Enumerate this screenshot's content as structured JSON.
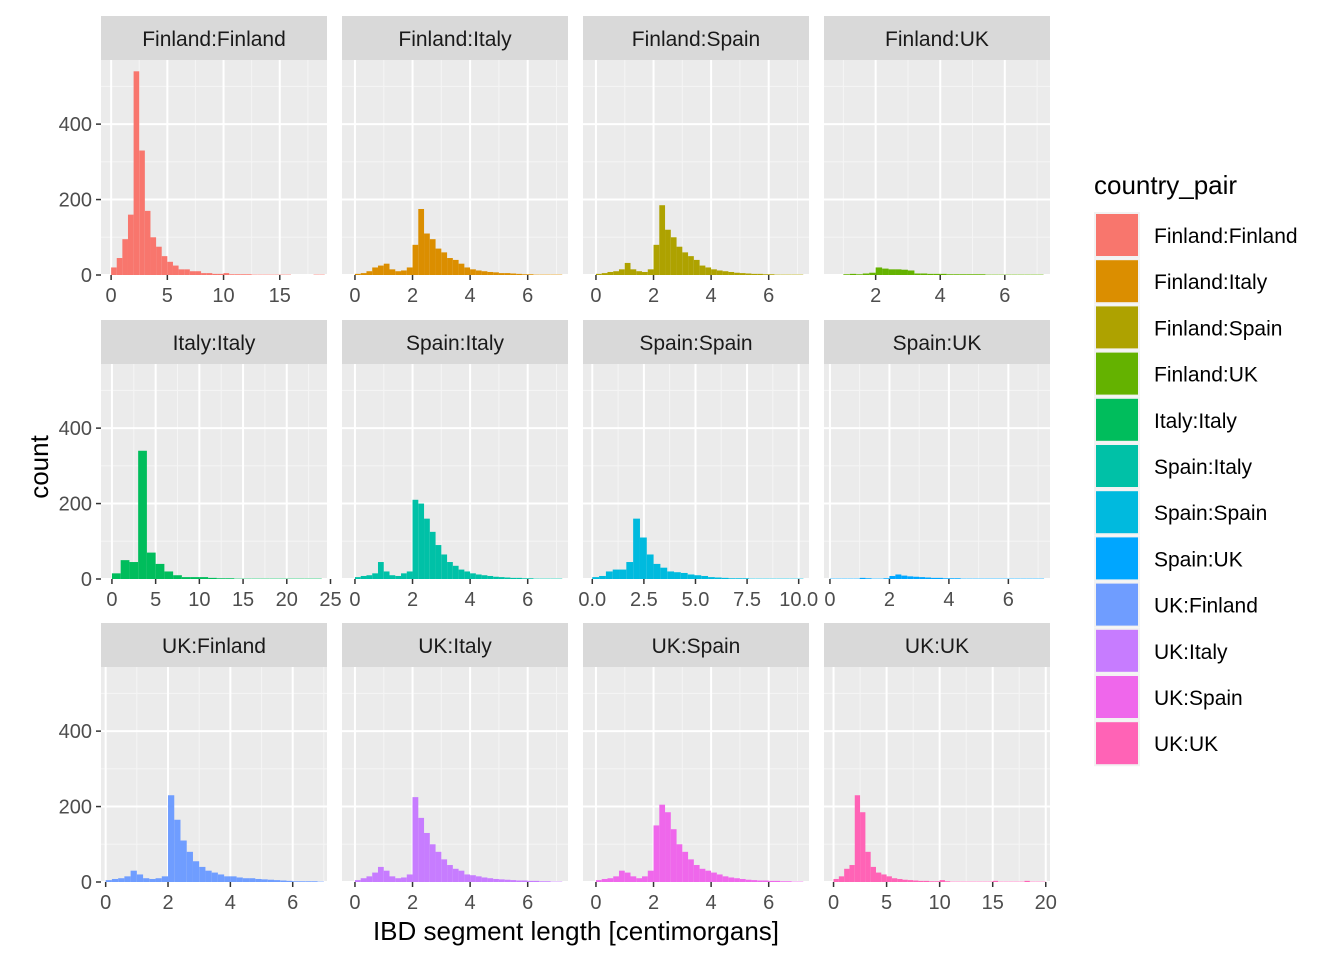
{
  "chart_data": {
    "type": "bar",
    "subtype": "faceted-histogram",
    "xlabel": "IBD segment length [centimorgans]",
    "ylabel": "count",
    "y_ticks": [
      "0",
      "200",
      "400"
    ],
    "ylim": [
      0,
      570
    ],
    "legend": {
      "title": "country_pair",
      "position": "right"
    },
    "panels": [
      {
        "name": "Finland:Finland",
        "color": "#F8766D",
        "xlim": [
          -0.9,
          19.2
        ],
        "x_ticks": [
          0,
          5,
          10,
          15
        ],
        "bin_width": 0.5,
        "bin_starts": [
          0,
          0.5,
          1,
          1.5,
          2,
          2.5,
          3,
          3.5,
          4,
          4.5,
          5,
          5.5,
          6,
          6.5,
          7,
          7.5,
          8,
          8.5,
          9,
          9.5,
          10,
          10.5,
          11,
          11.5,
          12,
          12.5,
          13,
          13.5,
          14,
          14.5,
          15,
          15.5,
          16,
          16.5,
          17,
          17.5,
          18,
          18.5
        ],
        "counts": [
          20,
          45,
          95,
          160,
          540,
          330,
          170,
          100,
          75,
          50,
          35,
          25,
          15,
          15,
          10,
          10,
          5,
          5,
          3,
          3,
          5,
          2,
          2,
          2,
          2,
          1,
          1,
          1,
          1,
          1,
          1,
          1,
          0,
          0,
          0,
          0,
          1,
          1
        ]
      },
      {
        "name": "Finland:Italy",
        "color": "#DB8E00",
        "xlim": [
          -0.45,
          7.4
        ],
        "x_ticks": [
          0,
          2,
          4,
          6
        ],
        "bin_width": 0.2,
        "bin_starts": [
          0,
          0.2,
          0.4,
          0.6,
          0.8,
          1,
          1.2,
          1.4,
          1.6,
          1.8,
          2,
          2.2,
          2.4,
          2.6,
          2.8,
          3,
          3.2,
          3.4,
          3.6,
          3.8,
          4,
          4.2,
          4.4,
          4.6,
          4.8,
          5,
          5.2,
          5.4,
          5.6,
          5.8,
          6,
          6.2,
          6.4,
          6.6,
          6.8,
          7
        ],
        "counts": [
          3,
          5,
          10,
          20,
          25,
          30,
          15,
          10,
          12,
          20,
          80,
          175,
          110,
          95,
          70,
          60,
          45,
          40,
          30,
          20,
          15,
          12,
          10,
          8,
          7,
          5,
          5,
          4,
          3,
          2,
          2,
          1,
          1,
          1,
          1,
          1
        ]
      },
      {
        "name": "Finland:Spain",
        "color": "#AEA200",
        "xlim": [
          -0.45,
          7.4
        ],
        "x_ticks": [
          0,
          2,
          4,
          6
        ],
        "bin_width": 0.2,
        "bin_starts": [
          0,
          0.2,
          0.4,
          0.6,
          0.8,
          1,
          1.2,
          1.4,
          1.6,
          1.8,
          2,
          2.2,
          2.4,
          2.6,
          2.8,
          3,
          3.2,
          3.4,
          3.6,
          3.8,
          4,
          4.2,
          4.4,
          4.6,
          4.8,
          5,
          5.2,
          5.4,
          5.6,
          5.8,
          6,
          6.2,
          6.4,
          6.6,
          6.8,
          7
        ],
        "counts": [
          3,
          5,
          8,
          10,
          15,
          32,
          15,
          10,
          8,
          15,
          80,
          185,
          120,
          100,
          75,
          60,
          50,
          40,
          25,
          20,
          15,
          12,
          10,
          8,
          6,
          5,
          4,
          3,
          3,
          2,
          2,
          1,
          1,
          1,
          1,
          1
        ]
      },
      {
        "name": "Finland:UK",
        "color": "#64B200",
        "xlim": [
          0.4,
          7.4
        ],
        "x_ticks": [
          2,
          4,
          6
        ],
        "bin_width": 0.2,
        "bin_starts": [
          1,
          1.2,
          1.4,
          1.6,
          1.8,
          2,
          2.2,
          2.4,
          2.6,
          2.8,
          3,
          3.2,
          3.4,
          3.6,
          3.8,
          4,
          4.2,
          4.4,
          4.6,
          4.8,
          5,
          5.2,
          5.4,
          5.6,
          5.8,
          6,
          6.2,
          6.4,
          6.6,
          6.8,
          7
        ],
        "counts": [
          2,
          3,
          2,
          4,
          6,
          20,
          17,
          15,
          15,
          14,
          12,
          4,
          4,
          3,
          3,
          3,
          2,
          2,
          2,
          2,
          2,
          2,
          1,
          1,
          1,
          1,
          1,
          1,
          1,
          1,
          1
        ]
      },
      {
        "name": "Italy:Italy",
        "color": "#00BD5C",
        "xlim": [
          -1.25,
          24.6
        ],
        "x_ticks": [
          0,
          5,
          10,
          15,
          20,
          25
        ],
        "bin_width": 1,
        "bin_starts": [
          0,
          1,
          2,
          3,
          4,
          5,
          6,
          7,
          8,
          9,
          10,
          11,
          12,
          13,
          14,
          15,
          16,
          17,
          18,
          19,
          20,
          21,
          22,
          23
        ],
        "counts": [
          15,
          50,
          45,
          340,
          70,
          40,
          20,
          10,
          5,
          5,
          5,
          3,
          2,
          2,
          1,
          1,
          1,
          1,
          1,
          1,
          1,
          1,
          1,
          1
        ]
      },
      {
        "name": "Spain:Italy",
        "color": "#00C1A7",
        "xlim": [
          -0.45,
          7.4
        ],
        "x_ticks": [
          0,
          2,
          4,
          6
        ],
        "bin_width": 0.2,
        "bin_starts": [
          0,
          0.2,
          0.4,
          0.6,
          0.8,
          1,
          1.2,
          1.4,
          1.6,
          1.8,
          2,
          2.2,
          2.4,
          2.6,
          2.8,
          3,
          3.2,
          3.4,
          3.6,
          3.8,
          4,
          4.2,
          4.4,
          4.6,
          4.8,
          5,
          5.2,
          5.4,
          5.6,
          5.8,
          6,
          6.2,
          6.4,
          6.6,
          6.8,
          7
        ],
        "counts": [
          5,
          8,
          10,
          15,
          45,
          20,
          10,
          8,
          15,
          20,
          210,
          200,
          160,
          125,
          90,
          65,
          45,
          35,
          25,
          20,
          15,
          12,
          10,
          8,
          6,
          5,
          4,
          3,
          3,
          2,
          2,
          1,
          1,
          1,
          1,
          1
        ]
      },
      {
        "name": "Spain:Spain",
        "color": "#00BADE",
        "xlim": [
          -0.45,
          10.5
        ],
        "x_ticks": [
          0,
          2.5,
          5,
          7.5,
          10
        ],
        "x_tick_labels": [
          "0.0",
          "2.5",
          "5.0",
          "7.5",
          "10.0"
        ],
        "bin_width": 0.33,
        "bin_starts": [
          0,
          0.33,
          0.66,
          0.99,
          1.32,
          1.65,
          1.98,
          2.31,
          2.64,
          2.97,
          3.3,
          3.63,
          3.96,
          4.29,
          4.62,
          4.95,
          5.28,
          5.61,
          5.94,
          6.27,
          6.6,
          6.93,
          7.26,
          7.59,
          7.92,
          8.25,
          8.58,
          8.91,
          9.24,
          9.57,
          9.9
        ],
        "counts": [
          5,
          8,
          20,
          25,
          25,
          45,
          160,
          110,
          65,
          40,
          30,
          20,
          18,
          16,
          12,
          10,
          8,
          5,
          4,
          3,
          2,
          2,
          2,
          1,
          1,
          1,
          1,
          1,
          1,
          1,
          1
        ]
      },
      {
        "name": "Spain:UK",
        "color": "#00A6FF",
        "xlim": [
          -0.2,
          7.4
        ],
        "x_ticks": [
          0,
          2,
          4,
          6
        ],
        "bin_width": 0.2,
        "bin_starts": [
          0,
          0.2,
          0.4,
          0.6,
          0.8,
          1,
          1.2,
          1.4,
          1.6,
          1.8,
          2,
          2.2,
          2.4,
          2.6,
          2.8,
          3,
          3.2,
          3.4,
          3.6,
          3.8,
          4,
          4.2,
          4.4,
          4.6,
          4.8,
          5,
          5.2,
          5.4,
          5.6,
          5.8,
          6,
          6.2,
          6.4,
          6.6,
          6.8,
          7
        ],
        "counts": [
          1,
          1,
          1,
          1,
          1,
          3,
          2,
          1,
          1,
          2,
          8,
          12,
          9,
          7,
          6,
          5,
          4,
          3,
          3,
          2,
          2,
          2,
          1,
          1,
          1,
          1,
          1,
          1,
          1,
          1,
          1,
          1,
          1,
          1,
          1,
          1
        ]
      },
      {
        "name": "UK:Finland",
        "color": "#6F9DFF",
        "xlim": [
          -0.15,
          7.1
        ],
        "x_ticks": [
          0,
          2,
          4,
          6
        ],
        "bin_width": 0.2,
        "bin_starts": [
          0,
          0.2,
          0.4,
          0.6,
          0.8,
          1,
          1.2,
          1.4,
          1.6,
          1.8,
          2,
          2.2,
          2.4,
          2.6,
          2.8,
          3,
          3.2,
          3.4,
          3.6,
          3.8,
          4,
          4.2,
          4.4,
          4.6,
          4.8,
          5,
          5.2,
          5.4,
          5.6,
          5.8,
          6,
          6.2,
          6.4,
          6.6,
          6.8
        ],
        "counts": [
          5,
          8,
          10,
          15,
          30,
          20,
          10,
          8,
          10,
          15,
          230,
          165,
          110,
          80,
          55,
          40,
          30,
          25,
          20,
          15,
          15,
          12,
          10,
          10,
          8,
          7,
          6,
          5,
          4,
          3,
          2,
          2,
          2,
          2,
          1
        ]
      },
      {
        "name": "UK:Italy",
        "color": "#C77CFF",
        "xlim": [
          -0.45,
          7.4
        ],
        "x_ticks": [
          0,
          2,
          4,
          6
        ],
        "bin_width": 0.2,
        "bin_starts": [
          0,
          0.2,
          0.4,
          0.6,
          0.8,
          1,
          1.2,
          1.4,
          1.6,
          1.8,
          2,
          2.2,
          2.4,
          2.6,
          2.8,
          3,
          3.2,
          3.4,
          3.6,
          3.8,
          4,
          4.2,
          4.4,
          4.6,
          4.8,
          5,
          5.2,
          5.4,
          5.6,
          5.8,
          6,
          6.2,
          6.4,
          6.6,
          6.8,
          7
        ],
        "counts": [
          5,
          10,
          15,
          25,
          40,
          30,
          15,
          10,
          12,
          20,
          225,
          170,
          130,
          100,
          80,
          60,
          45,
          35,
          30,
          20,
          18,
          15,
          12,
          10,
          8,
          7,
          6,
          5,
          4,
          4,
          3,
          3,
          2,
          2,
          1,
          1
        ]
      },
      {
        "name": "UK:Spain",
        "color": "#EF67EB",
        "xlim": [
          -0.45,
          7.4
        ],
        "x_ticks": [
          0,
          2,
          4,
          6
        ],
        "bin_width": 0.2,
        "bin_starts": [
          0,
          0.2,
          0.4,
          0.6,
          0.8,
          1,
          1.2,
          1.4,
          1.6,
          1.8,
          2,
          2.2,
          2.4,
          2.6,
          2.8,
          3,
          3.2,
          3.4,
          3.6,
          3.8,
          4,
          4.2,
          4.4,
          4.6,
          4.8,
          5,
          5.2,
          5.4,
          5.6,
          5.8,
          6,
          6.2,
          6.4,
          6.6,
          6.8,
          7
        ],
        "counts": [
          5,
          8,
          10,
          15,
          30,
          25,
          15,
          10,
          15,
          30,
          150,
          205,
          185,
          140,
          100,
          80,
          60,
          45,
          35,
          30,
          25,
          20,
          15,
          12,
          10,
          8,
          6,
          5,
          4,
          4,
          3,
          3,
          2,
          2,
          1,
          1
        ]
      },
      {
        "name": "UK:UK",
        "color": "#FF63B6",
        "xlim": [
          -0.9,
          20.4
        ],
        "x_ticks": [
          0,
          5,
          10,
          15,
          20
        ],
        "bin_width": 0.5,
        "bin_starts": [
          0,
          0.5,
          1,
          1.5,
          2,
          2.5,
          3,
          3.5,
          4,
          4.5,
          5,
          5.5,
          6,
          6.5,
          7,
          7.5,
          8,
          8.5,
          9,
          9.5,
          10,
          10.5,
          11,
          11.5,
          12,
          12.5,
          13,
          13.5,
          14,
          14.5,
          15,
          15.5,
          16,
          16.5,
          17,
          17.5,
          18,
          18.5,
          19,
          19.5
        ],
        "counts": [
          8,
          15,
          35,
          45,
          230,
          185,
          80,
          40,
          25,
          20,
          15,
          10,
          8,
          6,
          5,
          4,
          3,
          3,
          2,
          2,
          5,
          2,
          1,
          1,
          1,
          1,
          1,
          1,
          1,
          1,
          3,
          1,
          1,
          1,
          1,
          1,
          3,
          1,
          1,
          1
        ]
      }
    ]
  }
}
